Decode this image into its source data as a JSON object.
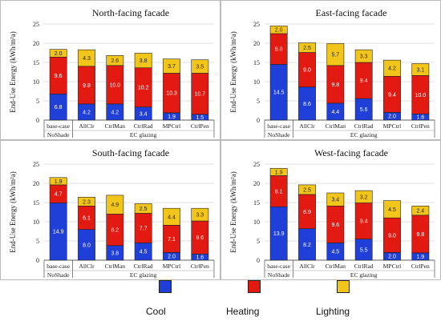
{
  "legend": [
    {
      "label": "Cool",
      "color": "#1f3fd8"
    },
    {
      "label": "Heating",
      "color": "#e21a12"
    },
    {
      "label": "Lighting",
      "color": "#f2c51a"
    }
  ],
  "chart_data": [
    {
      "type": "bar",
      "stacked": true,
      "title": "North-facing facade",
      "ylabel": "End-Use Energy (kWh/m²a)",
      "ylim": [
        0,
        25
      ],
      "yticks": [
        0,
        5,
        10,
        15,
        20,
        25
      ],
      "grid": true,
      "categories": [
        "base-case",
        "AllClr",
        "CtrlMan",
        "CtrlRad",
        "MPCtrl",
        "CtrlPen"
      ],
      "group_labels": [
        {
          "label": "NoShade",
          "from": 0,
          "to": 0
        },
        {
          "label": "EC glazing",
          "from": 1,
          "to": 5
        }
      ],
      "series": [
        {
          "name": "Cool",
          "color": "#1f3fd8",
          "values": [
            6.8,
            4.2,
            4.2,
            3.4,
            1.9,
            1.5
          ],
          "labels": [
            "6.8",
            "4.2",
            "4.2",
            "3.4",
            "1.9",
            "1.5"
          ]
        },
        {
          "name": "Heating",
          "color": "#e21a12",
          "values": [
            9.6,
            9.8,
            10.0,
            10.2,
            10.3,
            10.7
          ],
          "labels": [
            "9.6",
            "9.8",
            "10.0",
            "10.2",
            "10.3",
            "10.7"
          ]
        },
        {
          "name": "Lighting",
          "color": "#f2c51a",
          "values": [
            2.0,
            4.3,
            2.6,
            3.8,
            3.7,
            3.5
          ],
          "labels": [
            "2.0",
            "4.3",
            "2.6",
            "3.8",
            "3.7",
            "3.5"
          ]
        }
      ]
    },
    {
      "type": "bar",
      "stacked": true,
      "title": "East-facing facade",
      "ylabel": "End-Use Energy (kWh/m²a)",
      "ylim": [
        0,
        25
      ],
      "yticks": [
        0,
        5,
        10,
        15,
        20,
        25
      ],
      "grid": true,
      "categories": [
        "base-case",
        "AllClr",
        "CtrlMan",
        "CtrlRad",
        "MPCtrl",
        "CtrlPen"
      ],
      "group_labels": [
        {
          "label": "NoShade",
          "from": 0,
          "to": 0
        },
        {
          "label": "EC glazing",
          "from": 1,
          "to": 5
        }
      ],
      "series": [
        {
          "name": "Cool",
          "color": "#1f3fd8",
          "values": [
            14.5,
            8.6,
            4.4,
            5.6,
            2.0,
            1.6
          ],
          "labels": [
            "14.5",
            "8.6",
            "4.4",
            "5.6",
            "2.0",
            "1.6"
          ]
        },
        {
          "name": "Heating",
          "color": "#e21a12",
          "values": [
            8.0,
            9.0,
            9.8,
            9.4,
            9.4,
            10.0
          ],
          "labels": [
            "8.0",
            "9.0",
            "9.8",
            "9.4",
            "9.4",
            "10.0"
          ]
        },
        {
          "name": "Lighting",
          "color": "#f2c51a",
          "values": [
            2.0,
            2.5,
            5.7,
            3.3,
            4.2,
            3.1
          ],
          "labels": [
            "2.0",
            "2.5",
            "5.7",
            "3.3",
            "4.2",
            "3.1"
          ]
        }
      ]
    },
    {
      "type": "bar",
      "stacked": true,
      "title": "South-facing facade",
      "ylabel": "End-Use Energy (kWh/m²a)",
      "ylim": [
        0,
        25
      ],
      "yticks": [
        0,
        5,
        10,
        15,
        20,
        25
      ],
      "grid": true,
      "categories": [
        "base-case",
        "AllClr",
        "CtrlMan",
        "CtrlRad",
        "MPCtrl",
        "CtrlPen"
      ],
      "group_labels": [
        {
          "label": "NoShade",
          "from": 0,
          "to": 0
        },
        {
          "label": "EC glazing",
          "from": 1,
          "to": 5
        }
      ],
      "series": [
        {
          "name": "Cool",
          "color": "#1f3fd8",
          "values": [
            14.9,
            8.0,
            3.8,
            4.5,
            2.0,
            1.6
          ],
          "labels": [
            "14.9",
            "8.0",
            "3.8",
            "4.5",
            "2.0",
            "1.6"
          ]
        },
        {
          "name": "Heating",
          "color": "#e21a12",
          "values": [
            4.7,
            6.1,
            8.2,
            7.7,
            7.1,
            8.6
          ],
          "labels": [
            "4.7",
            "6.1",
            "8.2",
            "7.7",
            "7.1",
            "8.6"
          ]
        },
        {
          "name": "Lighting",
          "color": "#f2c51a",
          "values": [
            1.9,
            2.3,
            4.9,
            2.5,
            4.4,
            3.3
          ],
          "labels": [
            "1.9",
            "2.3",
            "4.9",
            "2.5",
            "4.4",
            "3.3"
          ]
        }
      ]
    },
    {
      "type": "bar",
      "stacked": true,
      "title": "West-facing facade",
      "ylabel": "End-Use Energy (kWh/m²a)",
      "ylim": [
        0,
        25
      ],
      "yticks": [
        0,
        5,
        10,
        15,
        20,
        25
      ],
      "grid": true,
      "categories": [
        "base-case",
        "AllClr",
        "CtrlMan",
        "CtrlRad",
        "MPCtrl",
        "CtrlPen"
      ],
      "group_labels": [
        {
          "label": "NoShade",
          "from": 0,
          "to": 0
        },
        {
          "label": "EC glazing",
          "from": 1,
          "to": 5
        }
      ],
      "series": [
        {
          "name": "Cool",
          "color": "#1f3fd8",
          "values": [
            13.9,
            8.2,
            4.5,
            5.5,
            2.0,
            1.9
          ],
          "labels": [
            "13.9",
            "8.2",
            "4.5",
            "5.5",
            "2.0",
            "1.9"
          ]
        },
        {
          "name": "Heating",
          "color": "#e21a12",
          "values": [
            8.1,
            8.9,
            9.6,
            9.4,
            9.0,
            9.8
          ],
          "labels": [
            "8.1",
            "8.9",
            "9.6",
            "9.4",
            "9.0",
            "9.8"
          ]
        },
        {
          "name": "Lighting",
          "color": "#f2c51a",
          "values": [
            1.9,
            2.5,
            3.4,
            3.2,
            4.5,
            2.4
          ],
          "labels": [
            "1.9",
            "2.5",
            "3.4",
            "3.2",
            "4.5",
            "2.4"
          ]
        }
      ]
    }
  ]
}
